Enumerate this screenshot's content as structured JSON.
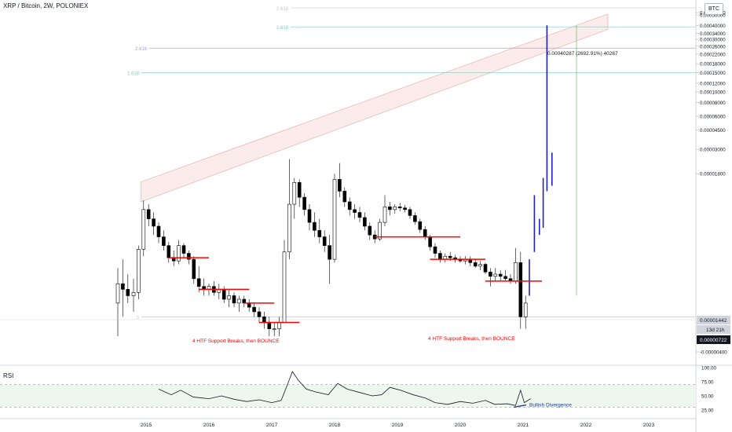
{
  "header": {
    "title": "XRP / Bitcoin, 2W, POLONIEX",
    "currency_tag": "BTC"
  },
  "rsi_panel": {
    "label": "RSI"
  },
  "colors": {
    "up": "#000000",
    "down": "#000000",
    "support": "#ff0000",
    "projection": "#2020c0",
    "channel": "#f4c7c3",
    "fib": "#b39ddb",
    "fib_teal": "#80cbc4",
    "divergence": "#1e3fa8"
  },
  "chart_data": {
    "type": "candlestick",
    "title": "XRP / Bitcoin, 2W, POLONIEX",
    "x_axis": {
      "ticks": [
        "2015",
        "2016",
        "2017",
        "2018",
        "2019",
        "2020",
        "2021",
        "2022",
        "2023"
      ]
    },
    "y_axis": {
      "scale": "log",
      "tick_labels": [
        "0.00060000",
        "0.00050000",
        "0.00040000",
        "0.00034000",
        "0.00030000",
        "0.00026000",
        "0.00022000",
        "0.00018000",
        "0.00015000",
        "0.00012000",
        "0.00010000",
        "0.00008000",
        "0.00006000",
        "0.00004500",
        "0.00003000",
        "0.00001800",
        "-0.00000400"
      ],
      "price_labels": [
        {
          "text": "0.00001442",
          "style": "gray"
        },
        {
          "text": "13d 21h",
          "style": "gray"
        },
        {
          "text": "0.00000722",
          "style": "dark"
        }
      ]
    },
    "fib_levels": [
      {
        "label": "2.618"
      },
      {
        "label": "1.618"
      },
      {
        "label": "2.618"
      },
      {
        "label": "1.618"
      },
      {
        "label": "0"
      }
    ],
    "series": [
      {
        "t": 2014.55,
        "o": 1.2e-06,
        "h": 2.5e-06,
        "l": 6e-07,
        "c": 1.8e-06
      },
      {
        "t": 2014.63,
        "o": 1.8e-06,
        "h": 3e-06,
        "l": 9e-07,
        "c": 1.6e-06
      },
      {
        "t": 2014.71,
        "o": 1.6e-06,
        "h": 2.2e-06,
        "l": 1.2e-06,
        "c": 1.4e-06
      },
      {
        "t": 2014.8,
        "o": 1.4e-06,
        "h": 2e-06,
        "l": 1e-06,
        "c": 1.5e-06
      },
      {
        "t": 2014.88,
        "o": 1.5e-06,
        "h": 4e-06,
        "l": 1.3e-06,
        "c": 3.7e-06
      },
      {
        "t": 2014.96,
        "o": 3.7e-06,
        "h": 1.03e-05,
        "l": 3.2e-06,
        "c": 8.5e-06
      },
      {
        "t": 2015.04,
        "o": 8.5e-06,
        "h": 9.5e-06,
        "l": 6e-06,
        "c": 7e-06
      },
      {
        "t": 2015.12,
        "o": 7e-06,
        "h": 8e-06,
        "l": 5e-06,
        "c": 6e-06
      },
      {
        "t": 2015.2,
        "o": 6e-06,
        "h": 6.5e-06,
        "l": 4.2e-06,
        "c": 4.8e-06
      },
      {
        "t": 2015.28,
        "o": 4.8e-06,
        "h": 5.5e-06,
        "l": 3.6e-06,
        "c": 4e-06
      },
      {
        "t": 2015.36,
        "o": 4e-06,
        "h": 4.3e-06,
        "l": 2.8e-06,
        "c": 3.1e-06
      },
      {
        "t": 2015.44,
        "o": 3.1e-06,
        "h": 3.6e-06,
        "l": 2.6e-06,
        "c": 2.9e-06
      },
      {
        "t": 2015.52,
        "o": 2.9e-06,
        "h": 4.5e-06,
        "l": 2.7e-06,
        "c": 4e-06
      },
      {
        "t": 2015.6,
        "o": 4e-06,
        "h": 4.2e-06,
        "l": 3.1e-06,
        "c": 3.4e-06
      },
      {
        "t": 2015.68,
        "o": 3.4e-06,
        "h": 3.6e-06,
        "l": 2.7e-06,
        "c": 3e-06
      },
      {
        "t": 2015.76,
        "o": 3e-06,
        "h": 3.2e-06,
        "l": 1.8e-06,
        "c": 2e-06
      },
      {
        "t": 2015.84,
        "o": 2e-06,
        "h": 2.6e-06,
        "l": 1.5e-06,
        "c": 1.7e-06
      },
      {
        "t": 2015.92,
        "o": 1.7e-06,
        "h": 2e-06,
        "l": 1.4e-06,
        "c": 1.6e-06
      },
      {
        "t": 2016.0,
        "o": 1.6e-06,
        "h": 1.8e-06,
        "l": 1.4e-06,
        "c": 1.7e-06
      },
      {
        "t": 2016.08,
        "o": 1.7e-06,
        "h": 1.9e-06,
        "l": 1.4e-06,
        "c": 1.5e-06
      },
      {
        "t": 2016.16,
        "o": 1.5e-06,
        "h": 1.8e-06,
        "l": 1.3e-06,
        "c": 1.6e-06
      },
      {
        "t": 2016.24,
        "o": 1.6e-06,
        "h": 1.7e-06,
        "l": 1.2e-06,
        "c": 1.3e-06
      },
      {
        "t": 2016.32,
        "o": 1.3e-06,
        "h": 1.6e-06,
        "l": 1.1e-06,
        "c": 1.4e-06
      },
      {
        "t": 2016.4,
        "o": 1.4e-06,
        "h": 1.5e-06,
        "l": 1.1e-06,
        "c": 1.2e-06
      },
      {
        "t": 2016.48,
        "o": 1.2e-06,
        "h": 1.4e-06,
        "l": 1e-06,
        "c": 1.3e-06
      },
      {
        "t": 2016.56,
        "o": 1.3e-06,
        "h": 1.4e-06,
        "l": 1.1e-06,
        "c": 1.2e-06
      },
      {
        "t": 2016.64,
        "o": 1.2e-06,
        "h": 1.3e-06,
        "l": 1e-06,
        "c": 1.1e-06
      },
      {
        "t": 2016.72,
        "o": 1.1e-06,
        "h": 1.2e-06,
        "l": 9e-07,
        "c": 1e-06
      },
      {
        "t": 2016.8,
        "o": 1e-06,
        "h": 1.1e-06,
        "l": 8e-07,
        "c": 9e-07
      },
      {
        "t": 2016.88,
        "o": 9e-07,
        "h": 1e-06,
        "l": 7e-07,
        "c": 8e-07
      },
      {
        "t": 2016.96,
        "o": 8e-07,
        "h": 9e-07,
        "l": 6e-07,
        "c": 7e-07
      },
      {
        "t": 2017.04,
        "o": 7e-07,
        "h": 8e-07,
        "l": 6e-07,
        "c": 7e-07
      },
      {
        "t": 2017.12,
        "o": 7e-07,
        "h": 9e-07,
        "l": 6e-07,
        "c": 8e-07
      },
      {
        "t": 2017.2,
        "o": 8e-07,
        "h": 4.5e-06,
        "l": 8e-07,
        "c": 3.5e-06
      },
      {
        "t": 2017.28,
        "o": 3.5e-06,
        "h": 2.45e-05,
        "l": 3e-06,
        "c": 9.5e-06
      },
      {
        "t": 2017.36,
        "o": 9.5e-06,
        "h": 1.65e-05,
        "l": 7e-06,
        "c": 1.5e-05
      },
      {
        "t": 2017.44,
        "o": 1.5e-05,
        "h": 1.6e-05,
        "l": 9e-06,
        "c": 1.1e-05
      },
      {
        "t": 2017.52,
        "o": 1.1e-05,
        "h": 1.2e-05,
        "l": 7.5e-06,
        "c": 8.5e-06
      },
      {
        "t": 2017.6,
        "o": 8.5e-06,
        "h": 9.5e-06,
        "l": 5.5e-06,
        "c": 6.5e-06
      },
      {
        "t": 2017.68,
        "o": 6.5e-06,
        "h": 8e-06,
        "l": 4.8e-06,
        "c": 5.5e-06
      },
      {
        "t": 2017.76,
        "o": 5.5e-06,
        "h": 7e-06,
        "l": 4.2e-06,
        "c": 4.8e-06
      },
      {
        "t": 2017.84,
        "o": 4.8e-06,
        "h": 5.5e-06,
        "l": 3.5e-06,
        "c": 4e-06
      },
      {
        "t": 2017.92,
        "o": 4e-06,
        "h": 5e-06,
        "l": 1.8e-06,
        "c": 3e-06
      },
      {
        "t": 2018.0,
        "o": 3e-06,
        "h": 1.8e-05,
        "l": 2.8e-06,
        "c": 1.6e-05
      },
      {
        "t": 2018.08,
        "o": 1.6e-05,
        "h": 2.25e-05,
        "l": 1.1e-05,
        "c": 1.25e-05
      },
      {
        "t": 2018.16,
        "o": 1.25e-05,
        "h": 1.35e-05,
        "l": 9e-06,
        "c": 1e-05
      },
      {
        "t": 2018.24,
        "o": 1e-05,
        "h": 1.1e-05,
        "l": 7.5e-06,
        "c": 8.5e-06
      },
      {
        "t": 2018.32,
        "o": 8.5e-06,
        "h": 9.5e-06,
        "l": 7e-06,
        "c": 8e-06
      },
      {
        "t": 2018.4,
        "o": 8e-06,
        "h": 9e-06,
        "l": 6.5e-06,
        "c": 7.2e-06
      },
      {
        "t": 2018.48,
        "o": 7.2e-06,
        "h": 8e-06,
        "l": 5.5e-06,
        "c": 6e-06
      },
      {
        "t": 2018.56,
        "o": 6e-06,
        "h": 6.5e-06,
        "l": 4.5e-06,
        "c": 5e-06
      },
      {
        "t": 2018.64,
        "o": 5e-06,
        "h": 5.5e-06,
        "l": 4.2e-06,
        "c": 4.6e-06
      },
      {
        "t": 2018.72,
        "o": 4.6e-06,
        "h": 7e-06,
        "l": 4.4e-06,
        "c": 6.5e-06
      },
      {
        "t": 2018.8,
        "o": 6.5e-06,
        "h": 1.15e-05,
        "l": 6e-06,
        "c": 9e-06
      },
      {
        "t": 2018.88,
        "o": 9e-06,
        "h": 1e-05,
        "l": 7.5e-06,
        "c": 8.5e-06
      },
      {
        "t": 2018.96,
        "o": 8.5e-06,
        "h": 9.5e-06,
        "l": 7.8e-06,
        "c": 9e-06
      },
      {
        "t": 2019.04,
        "o": 9e-06,
        "h": 9.8e-06,
        "l": 8.2e-06,
        "c": 8.8e-06
      },
      {
        "t": 2019.12,
        "o": 8.8e-06,
        "h": 9.4e-06,
        "l": 8e-06,
        "c": 8.5e-06
      },
      {
        "t": 2019.2,
        "o": 8.5e-06,
        "h": 9e-06,
        "l": 7e-06,
        "c": 7.5e-06
      },
      {
        "t": 2019.28,
        "o": 7.5e-06,
        "h": 8e-06,
        "l": 6.2e-06,
        "c": 6.6e-06
      },
      {
        "t": 2019.36,
        "o": 6.6e-06,
        "h": 7e-06,
        "l": 5.2e-06,
        "c": 5.6e-06
      },
      {
        "t": 2019.44,
        "o": 5.6e-06,
        "h": 6e-06,
        "l": 4.5e-06,
        "c": 4.8e-06
      },
      {
        "t": 2019.52,
        "o": 4.8e-06,
        "h": 5e-06,
        "l": 3.6e-06,
        "c": 3.9e-06
      },
      {
        "t": 2019.6,
        "o": 3.9e-06,
        "h": 4.2e-06,
        "l": 3.1e-06,
        "c": 3.4e-06
      },
      {
        "t": 2019.68,
        "o": 3.4e-06,
        "h": 3.6e-06,
        "l": 2.8e-06,
        "c": 3e-06
      },
      {
        "t": 2019.76,
        "o": 3e-06,
        "h": 3.4e-06,
        "l": 2.8e-06,
        "c": 3.2e-06
      },
      {
        "t": 2019.84,
        "o": 3.2e-06,
        "h": 3.5e-06,
        "l": 2.9e-06,
        "c": 3.1e-06
      },
      {
        "t": 2019.92,
        "o": 3.1e-06,
        "h": 3.3e-06,
        "l": 2.8e-06,
        "c": 3e-06
      },
      {
        "t": 2020.0,
        "o": 3e-06,
        "h": 3.2e-06,
        "l": 2.8e-06,
        "c": 2.9e-06
      },
      {
        "t": 2020.08,
        "o": 2.9e-06,
        "h": 3.2e-06,
        "l": 2.7e-06,
        "c": 3e-06
      },
      {
        "t": 2020.16,
        "o": 3e-06,
        "h": 3.2e-06,
        "l": 2.6e-06,
        "c": 2.8e-06
      },
      {
        "t": 2020.24,
        "o": 2.8e-06,
        "h": 3e-06,
        "l": 2.5e-06,
        "c": 2.6e-06
      },
      {
        "t": 2020.32,
        "o": 2.6e-06,
        "h": 2.9e-06,
        "l": 2.4e-06,
        "c": 2.7e-06
      },
      {
        "t": 2020.4,
        "o": 2.7e-06,
        "h": 2.8e-06,
        "l": 2.2e-06,
        "c": 2.3e-06
      },
      {
        "t": 2020.48,
        "o": 2.3e-06,
        "h": 2.5e-06,
        "l": 1.7e-06,
        "c": 2.1e-06
      },
      {
        "t": 2020.56,
        "o": 2.1e-06,
        "h": 2.5e-06,
        "l": 1.9e-06,
        "c": 2.2e-06
      },
      {
        "t": 2020.64,
        "o": 2.2e-06,
        "h": 2.4e-06,
        "l": 1.9e-06,
        "c": 2.1e-06
      },
      {
        "t": 2020.72,
        "o": 2.1e-06,
        "h": 2.4e-06,
        "l": 1.9e-06,
        "c": 2e-06
      },
      {
        "t": 2020.8,
        "o": 2e-06,
        "h": 2.2e-06,
        "l": 1.8e-06,
        "c": 1.9e-06
      },
      {
        "t": 2020.88,
        "o": 1.9e-06,
        "h": 3.8e-06,
        "l": 1.8e-06,
        "c": 2.8e-06
      },
      {
        "t": 2020.96,
        "o": 2.8e-06,
        "h": 3.5e-06,
        "l": 7e-07,
        "c": 9e-07
      },
      {
        "t": 2021.04,
        "o": 9e-07,
        "h": 1.4e-06,
        "l": 7e-07,
        "c": 1.2e-06
      }
    ],
    "projection": [
      {
        "t": 2021.1,
        "l": 1.4e-06,
        "h": 3e-06
      },
      {
        "t": 2021.18,
        "l": 3.5e-06,
        "h": 1.15e-05
      },
      {
        "t": 2021.26,
        "l": 5e-06,
        "h": 7e-06
      },
      {
        "t": 2021.32,
        "l": 5.8e-06,
        "h": 1.65e-05
      },
      {
        "t": 2021.38,
        "l": 1.25e-05,
        "h": 0.00040287
      },
      {
        "t": 2021.46,
        "l": 1.4e-05,
        "h": 2.8e-05
      }
    ],
    "support_lines": [
      {
        "t0": 2015.36,
        "t1": 2016.0,
        "price": 3.1e-06
      },
      {
        "t0": 2015.84,
        "t1": 2016.64,
        "price": 1.6e-06
      },
      {
        "t0": 2016.56,
        "t1": 2017.04,
        "price": 1.2e-06
      },
      {
        "t0": 2016.8,
        "t1": 2017.44,
        "price": 8e-07
      },
      {
        "t0": 2018.64,
        "t1": 2020.0,
        "price": 4.8e-06
      },
      {
        "t0": 2019.52,
        "t1": 2020.4,
        "price": 3e-06
      },
      {
        "t0": 2020.4,
        "t1": 2021.3,
        "price": 1.9e-06
      }
    ],
    "annotations": [
      {
        "text": "4 HTF Support Breaks, then BOUNCE"
      },
      {
        "text": "4 HTF Support Breaks, then BOUNCE"
      },
      {
        "text": "0.00040287 (2692.91%) 40287"
      },
      {
        "text": "Bullish Divergence"
      }
    ],
    "rsi": {
      "y_ticks": [
        "100.00",
        "75.00",
        "50.00",
        "25.00"
      ],
      "band": [
        30,
        70
      ],
      "values": [
        {
          "t": 2015.2,
          "v": 62
        },
        {
          "t": 2015.4,
          "v": 52
        },
        {
          "t": 2015.55,
          "v": 60
        },
        {
          "t": 2015.75,
          "v": 48
        },
        {
          "t": 2016.0,
          "v": 45
        },
        {
          "t": 2016.2,
          "v": 50
        },
        {
          "t": 2016.4,
          "v": 44
        },
        {
          "t": 2016.6,
          "v": 40
        },
        {
          "t": 2016.8,
          "v": 43
        },
        {
          "t": 2017.0,
          "v": 38
        },
        {
          "t": 2017.15,
          "v": 42
        },
        {
          "t": 2017.25,
          "v": 70
        },
        {
          "t": 2017.33,
          "v": 93
        },
        {
          "t": 2017.42,
          "v": 78
        },
        {
          "t": 2017.55,
          "v": 62
        },
        {
          "t": 2017.7,
          "v": 57
        },
        {
          "t": 2017.9,
          "v": 52
        },
        {
          "t": 2018.05,
          "v": 72
        },
        {
          "t": 2018.2,
          "v": 62
        },
        {
          "t": 2018.4,
          "v": 56
        },
        {
          "t": 2018.6,
          "v": 50
        },
        {
          "t": 2018.75,
          "v": 52
        },
        {
          "t": 2018.88,
          "v": 65
        },
        {
          "t": 2019.05,
          "v": 60
        },
        {
          "t": 2019.25,
          "v": 52
        },
        {
          "t": 2019.45,
          "v": 46
        },
        {
          "t": 2019.6,
          "v": 38
        },
        {
          "t": 2019.8,
          "v": 35
        },
        {
          "t": 2020.0,
          "v": 40
        },
        {
          "t": 2020.2,
          "v": 37
        },
        {
          "t": 2020.4,
          "v": 42
        },
        {
          "t": 2020.55,
          "v": 35
        },
        {
          "t": 2020.75,
          "v": 36
        },
        {
          "t": 2020.88,
          "v": 33
        },
        {
          "t": 2020.96,
          "v": 60
        },
        {
          "t": 2021.02,
          "v": 38
        },
        {
          "t": 2021.12,
          "v": 45
        }
      ],
      "divergence": {
        "t0": 2020.85,
        "v0": 30,
        "t1": 2021.05,
        "v1": 34
      }
    }
  }
}
